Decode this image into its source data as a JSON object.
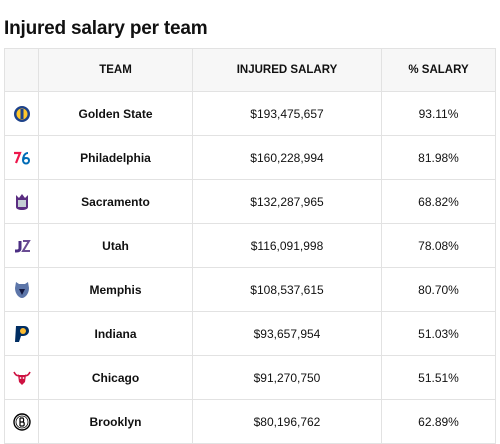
{
  "page": {
    "title": "Injured salary per team"
  },
  "table": {
    "headers": {
      "logo": "",
      "team": "TEAM",
      "salary": "INJURED SALARY",
      "pct": "% SALARY"
    },
    "rows": [
      {
        "team": "Golden State",
        "salary": "$193,475,657",
        "pct": "93.11%",
        "logo_icon": "warriors-logo-icon",
        "logo_color": "#1d428a"
      },
      {
        "team": "Philadelphia",
        "salary": "$160,228,994",
        "pct": "81.98%",
        "logo_icon": "sixers-logo-icon",
        "logo_color": "#006bb6"
      },
      {
        "team": "Sacramento",
        "salary": "$132,287,965",
        "pct": "68.82%",
        "logo_icon": "kings-logo-icon",
        "logo_color": "#5a2d81"
      },
      {
        "team": "Utah",
        "salary": "$116,091,998",
        "pct": "78.08%",
        "logo_icon": "jazz-logo-icon",
        "logo_color": "#4b2e83"
      },
      {
        "team": "Memphis",
        "salary": "$108,537,615",
        "pct": "80.70%",
        "logo_icon": "grizzlies-logo-icon",
        "logo_color": "#5d76a9"
      },
      {
        "team": "Indiana",
        "salary": "$93,657,954",
        "pct": "51.03%",
        "logo_icon": "pacers-logo-icon",
        "logo_color": "#002d62"
      },
      {
        "team": "Chicago",
        "salary": "$91,270,750",
        "pct": "51.51%",
        "logo_icon": "bulls-logo-icon",
        "logo_color": "#ce1141"
      },
      {
        "team": "Brooklyn",
        "salary": "$80,196,762",
        "pct": "62.89%",
        "logo_icon": "nets-logo-icon",
        "logo_color": "#000000"
      }
    ]
  }
}
